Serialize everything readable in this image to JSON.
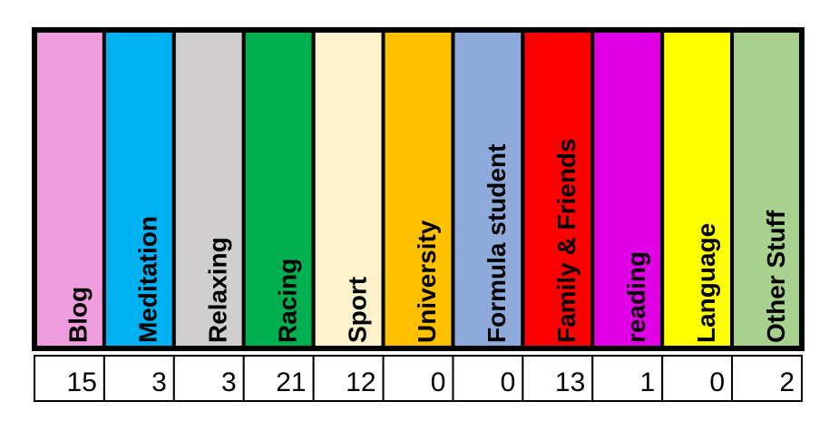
{
  "columns": [
    {
      "label": "Blog",
      "value": 15,
      "color": "#f09de0"
    },
    {
      "label": "Meditation",
      "value": 3,
      "color": "#00b0f0"
    },
    {
      "label": "Relaxing",
      "value": 3,
      "color": "#d0cece"
    },
    {
      "label": "Racing",
      "value": 21,
      "color": "#00b050"
    },
    {
      "label": "Sport",
      "value": 12,
      "color": "#fff2cc"
    },
    {
      "label": "University",
      "value": 0,
      "color": "#ffc000"
    },
    {
      "label": "Formula student",
      "value": 0,
      "color": "#8eaadb"
    },
    {
      "label": "Family & Friends",
      "value": 13,
      "color": "#ff0000"
    },
    {
      "label": "reading",
      "value": 1,
      "color": "#e000e6"
    },
    {
      "label": "Language",
      "value": 0,
      "color": "#ffff00"
    },
    {
      "label": "Other Stuff",
      "value": 2,
      "color": "#a9d18e"
    }
  ]
}
